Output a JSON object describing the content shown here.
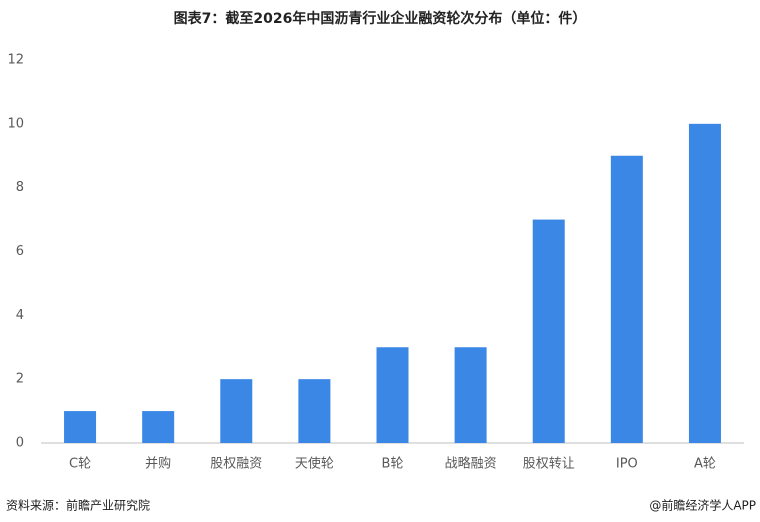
{
  "chart_data": {
    "type": "bar",
    "title": "图表7：截至2026年中国沥青行业企业融资轮次分布（单位：件）",
    "categories": [
      "C轮",
      "并购",
      "股权融资",
      "天使轮",
      "B轮",
      "战略融资",
      "股权转让",
      "IPO",
      "A轮"
    ],
    "values": [
      1,
      1,
      2,
      2,
      3,
      3,
      7,
      9,
      10
    ],
    "color": "#3a87e6",
    "ylim": [
      0,
      12
    ],
    "yticks": [
      0,
      2,
      4,
      6,
      8,
      10,
      12
    ],
    "grid": false,
    "source": "资料来源：前瞻产业研究院",
    "credit": "@前瞻经济学人APP"
  }
}
